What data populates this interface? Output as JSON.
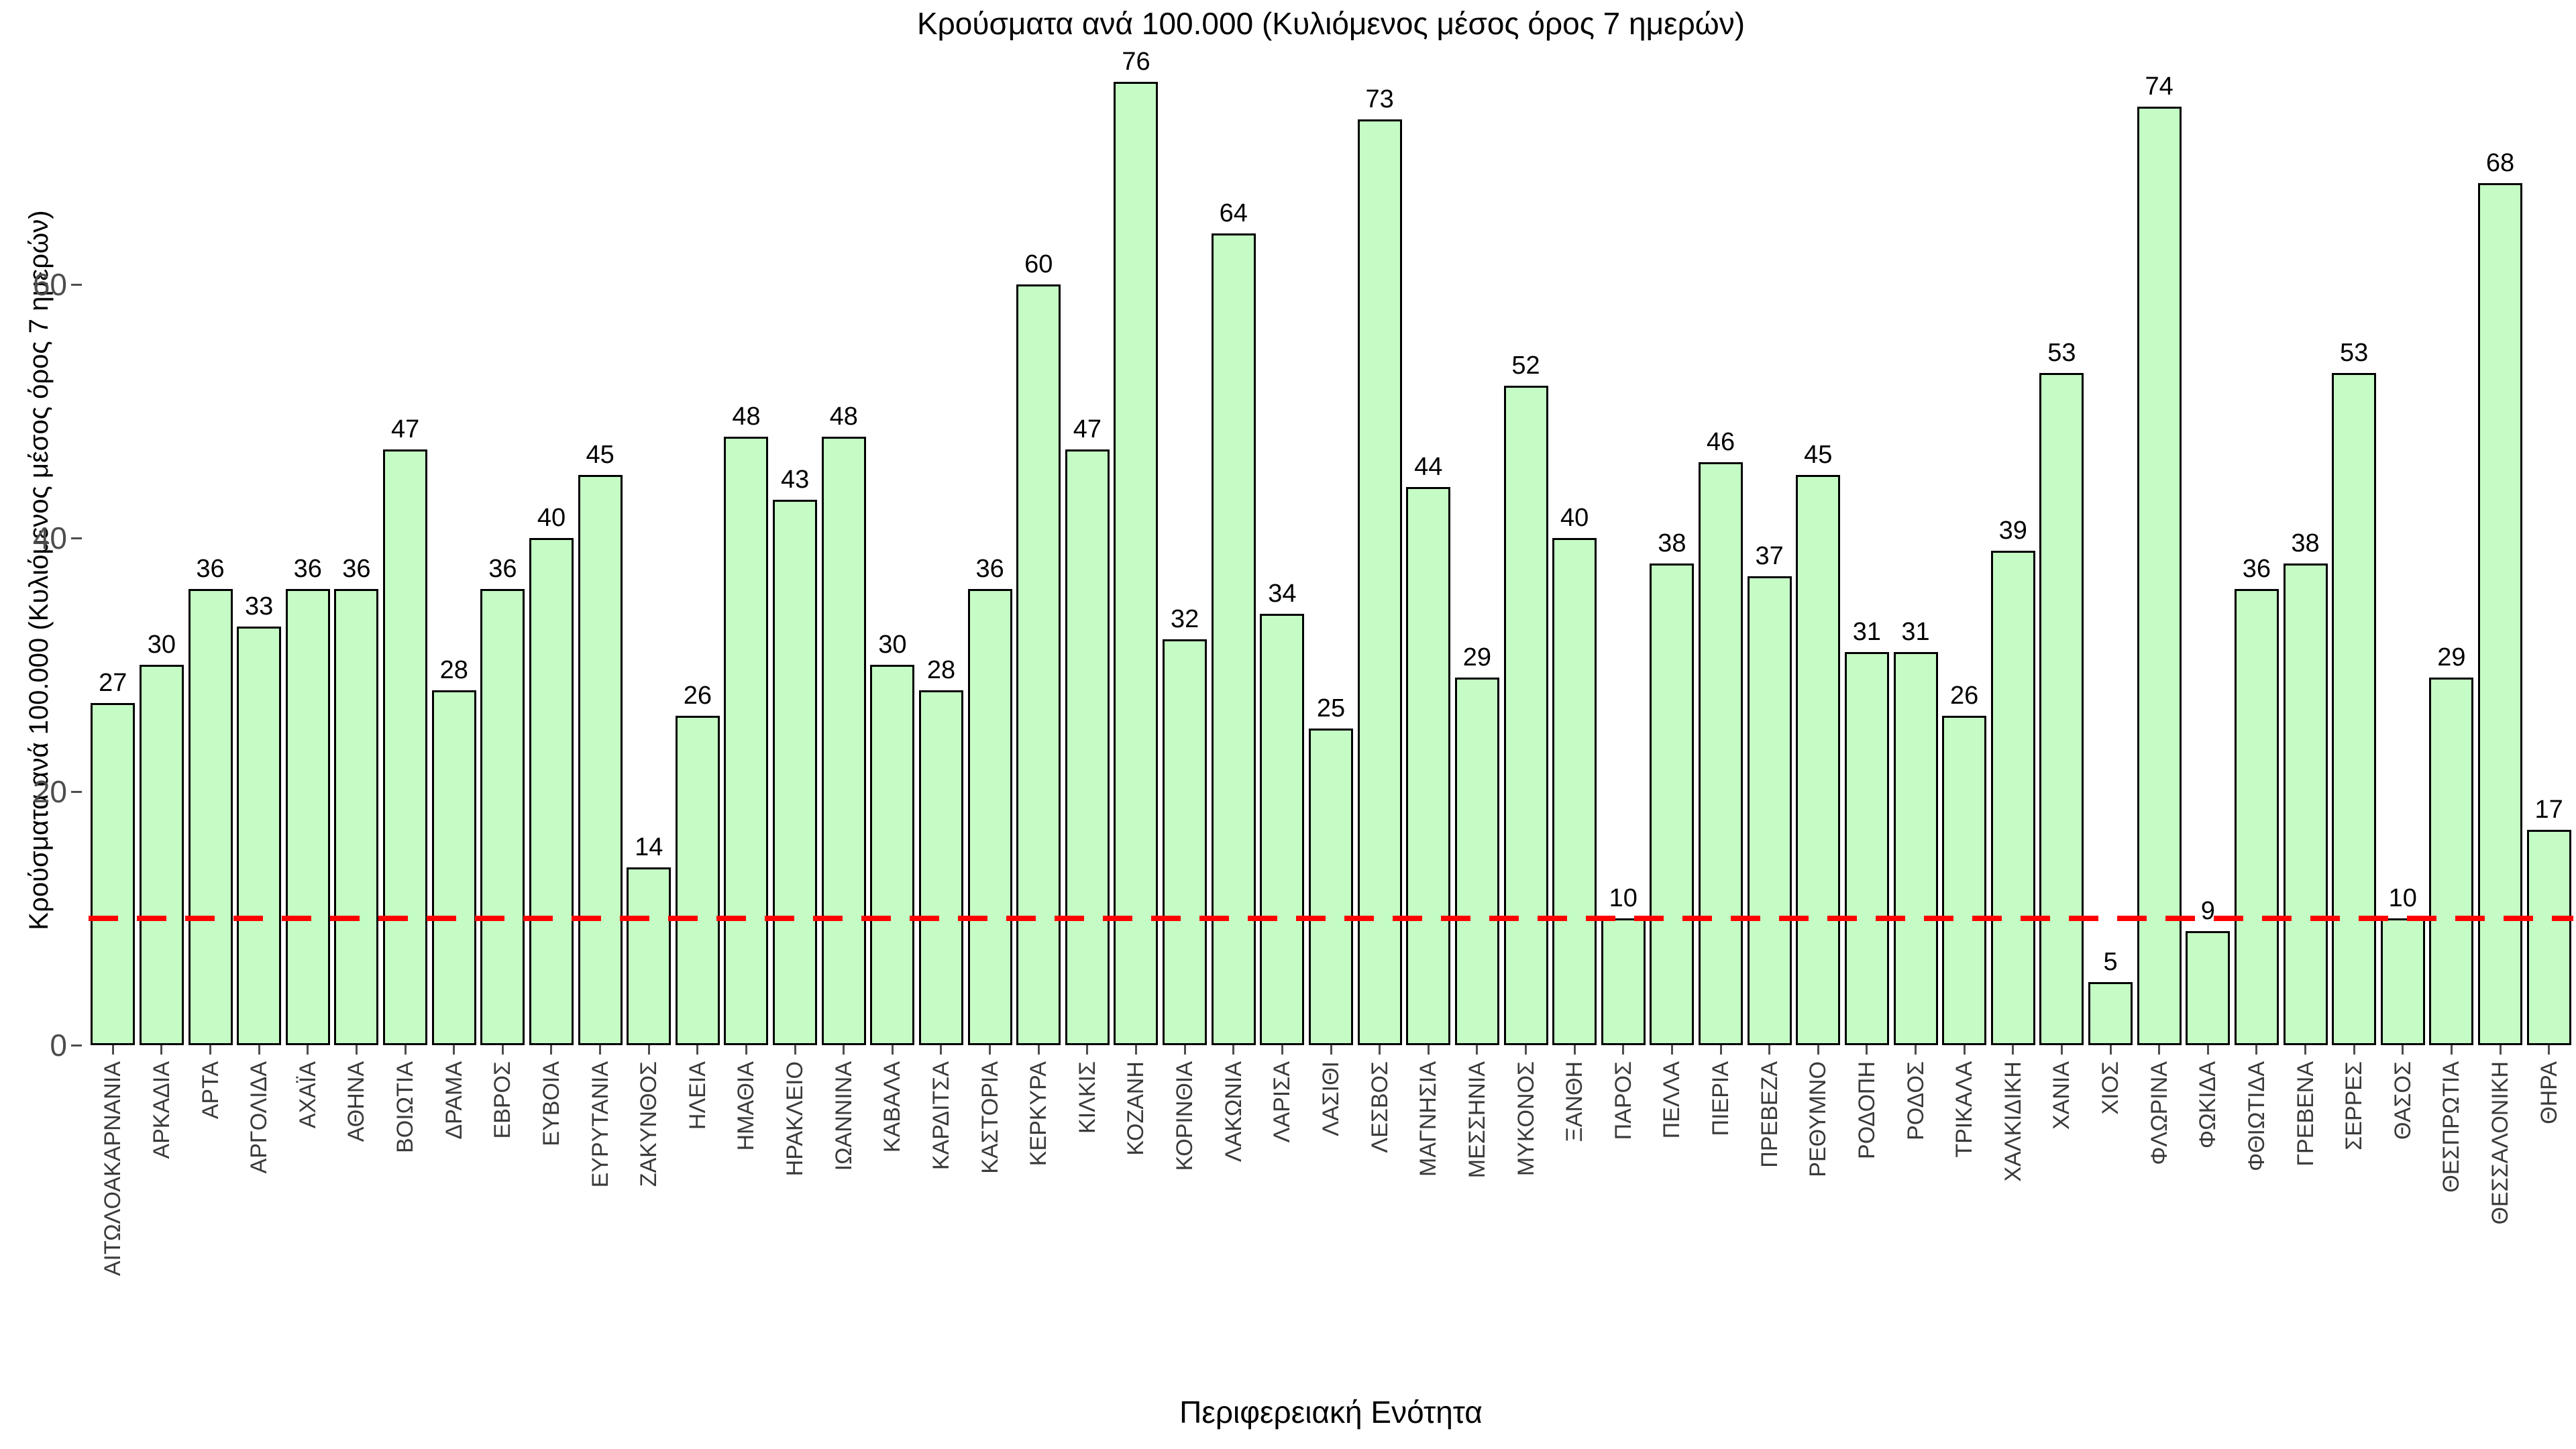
{
  "title": "Κρούσματα ανά 100.000 (Κυλιόμενος μέσος όρος 7 ημερών)",
  "chart_data": {
    "type": "bar",
    "title": "Κρούσματα ανά 100.000 (Κυλιόμενος μέσος όρος 7 ημερών)",
    "xlabel": "Περιφερειακή Ενότητα",
    "ylabel": "Κρούσματα ανά 100.000 (Κυλιόμενος μέσος όρος 7 ημερών)",
    "categories": [
      "ΑΙΤΩΛΟΑΚΑΡΝΑΝΙΑ",
      "ΑΡΚΑΔΙΑ",
      "ΑΡΤΑ",
      "ΑΡΓΟΛΙΔΑ",
      "ΑΧΑΪΑ",
      "ΑΘΗΝΑ",
      "ΒΟΙΩΤΙΑ",
      "ΔΡΑΜΑ",
      "ΕΒΡΟΣ",
      "ΕΥΒΟΙΑ",
      "ΕΥΡΥΤΑΝΙΑ",
      "ΖΑΚΥΝΘΟΣ",
      "ΗΛΕΙΑ",
      "ΗΜΑΘΙΑ",
      "ΗΡΑΚΛΕΙΟ",
      "ΙΩΑΝΝΙΝΑ",
      "ΚΑΒΑΛΑ",
      "ΚΑΡΔΙΤΣΑ",
      "ΚΑΣΤΟΡΙΑ",
      "ΚΕΡΚΥΡΑ",
      "ΚΙΛΚΙΣ",
      "ΚΟΖΑΝΗ",
      "ΚΟΡΙΝΘΙΑ",
      "ΛΑΚΩΝΙΑ",
      "ΛΑΡΙΣΑ",
      "ΛΑΣΙΘΙ",
      "ΛΕΣΒΟΣ",
      "ΜΑΓΝΗΣΙΑ",
      "ΜΕΣΣΗΝΙΑ",
      "ΜΥΚΟΝΟΣ",
      "ΞΑΝΘΗ",
      "ΠΑΡΟΣ",
      "ΠΕΛΛΑ",
      "ΠΙΕΡΙΑ",
      "ΠΡΕΒΕΖΑ",
      "ΡΕΘΥΜΝΟ",
      "ΡΟΔΟΠΗ",
      "ΡΟΔΟΣ",
      "ΤΡΙΚΑΛΑ",
      "ΧΑΛΚΙΔΙΚΗ",
      "ΧΑΝΙΑ",
      "ΧΙΟΣ",
      "ΦΛΩΡΙΝΑ",
      "ΦΩΚΙΔΑ",
      "ΦΘΙΩΤΙΔΑ",
      "ΓΡΕΒΕΝΑ",
      "ΣΕΡΡΕΣ",
      "ΘΑΣΟΣ",
      "ΘΕΣΠΡΩΤΙΑ",
      "ΘΕΣΣΑΛΟΝΙΚΗ",
      "ΘΗΡΑ"
    ],
    "values": [
      27,
      30,
      36,
      33,
      36,
      36,
      47,
      28,
      36,
      40,
      45,
      14,
      26,
      48,
      43,
      48,
      30,
      28,
      36,
      60,
      47,
      76,
      32,
      64,
      34,
      25,
      73,
      44,
      29,
      52,
      40,
      10,
      38,
      46,
      37,
      45,
      31,
      31,
      26,
      39,
      53,
      5,
      74,
      9,
      36,
      38,
      53,
      10,
      29,
      68,
      17
    ],
    "yticks": [
      0,
      20,
      40,
      60
    ],
    "ylim": [
      0,
      80
    ],
    "grid": false,
    "legend": null,
    "threshold_line": {
      "value": 10,
      "color": "#ff0000",
      "style": "dashed"
    },
    "bar_fill": "#c5fcc5",
    "bar_border": "#000000",
    "tick_color": "#4d4d4d",
    "x_label_color": "#3a3a3a"
  }
}
